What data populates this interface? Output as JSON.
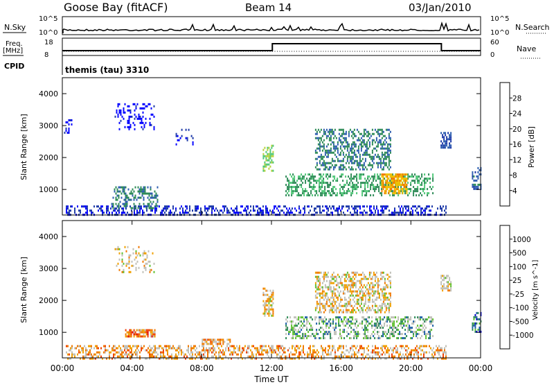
{
  "header": {
    "site": "Goose Bay (fitACF)",
    "beam": "Beam 14",
    "date": "03/Jan/2010"
  },
  "top_panel": {
    "nsky_label": "N.Sky",
    "nsearch_label": "N.Search",
    "tick_high": "10^5",
    "tick_low": "10^0",
    "freq_label": "Freq.",
    "freq_unit": "[MHz]",
    "freq_ticks": [
      "18",
      "8"
    ],
    "nave_label": "Nave",
    "nave_ticks": [
      "60",
      "0"
    ],
    "cpid_label": "CPID",
    "cpid_value": "themis (tau) 3310"
  },
  "x_axis": {
    "label": "Time UT",
    "ticks": [
      "00:00",
      "04:00",
      "08:00",
      "12:00",
      "16:00",
      "20:00",
      "00:00"
    ]
  },
  "colors": {
    "power": [
      "#0000ff",
      "#1e3aa8",
      "#2f5fb0",
      "#2e8b57",
      "#50c878",
      "#b8d23c",
      "#f0c000",
      "#f07c00",
      "#e03020",
      "#cc0000"
    ],
    "velocity": [
      "#e00000",
      "#f04000",
      "#f07800",
      "#f0a000",
      "#c0c0b8",
      "#c0c0b8",
      "#60c030",
      "#2e8b57",
      "#1e5fa8",
      "#0000cc"
    ]
  },
  "chart_data": [
    {
      "type": "heatmap",
      "name": "power",
      "ylabel": "Slant Range [km]",
      "ylim": [
        200,
        4500
      ],
      "yticks": [
        "4000",
        "3000",
        "2000",
        "1000"
      ],
      "xlim": [
        0,
        24
      ],
      "colorbar": {
        "label": "Power [dB]",
        "range": [
          0,
          32
        ],
        "ticks": [
          "28",
          "24",
          "20",
          "16",
          "12",
          "8",
          "4"
        ]
      },
      "regions": [
        {
          "t0": 0.2,
          "t1": 22.0,
          "r0": 200,
          "r1": 500,
          "level": 4,
          "density": 0.45
        },
        {
          "t0": 2.8,
          "t1": 5.5,
          "r0": 400,
          "r1": 1100,
          "level": 10,
          "density": 0.4
        },
        {
          "t0": 3.0,
          "t1": 5.3,
          "r0": 2900,
          "r1": 3700,
          "level": 2,
          "density": 0.25
        },
        {
          "t0": 0.1,
          "t1": 0.5,
          "r0": 2800,
          "r1": 3200,
          "level": 2,
          "density": 0.4
        },
        {
          "t0": 11.5,
          "t1": 12.1,
          "r0": 1600,
          "r1": 2400,
          "level": 15,
          "density": 0.55
        },
        {
          "t0": 12.8,
          "t1": 21.3,
          "r0": 800,
          "r1": 1500,
          "level": 12,
          "density": 0.45
        },
        {
          "t0": 14.5,
          "t1": 18.8,
          "r0": 1600,
          "r1": 2900,
          "level": 10,
          "density": 0.45
        },
        {
          "t0": 18.3,
          "t1": 19.8,
          "r0": 900,
          "r1": 1500,
          "level": 22,
          "density": 0.7
        },
        {
          "t0": 21.7,
          "t1": 22.3,
          "r0": 2300,
          "r1": 2800,
          "level": 6,
          "density": 0.6
        },
        {
          "t0": 23.5,
          "t1": 24.0,
          "r0": 1000,
          "r1": 1700,
          "level": 8,
          "density": 0.5
        },
        {
          "t0": 6.5,
          "t1": 7.5,
          "r0": 2400,
          "r1": 2900,
          "level": 3,
          "density": 0.2
        }
      ]
    },
    {
      "type": "heatmap",
      "name": "velocity",
      "ylabel": "Slant Range [km]",
      "ylim": [
        200,
        4500
      ],
      "yticks": [
        "4000",
        "3000",
        "2000",
        "1000"
      ],
      "xlim": [
        0,
        24
      ],
      "colorbar": {
        "label": "Velocity [m s^-1]",
        "ticks": [
          "1000",
          "500",
          "100",
          "25",
          "-25",
          "-100",
          "-500",
          "-1000"
        ]
      },
      "regions": [
        {
          "t0": 0.2,
          "t1": 22.0,
          "r0": 200,
          "r1": 600,
          "level": 3,
          "density": 0.45
        },
        {
          "t0": 3.6,
          "t1": 5.3,
          "r0": 850,
          "r1": 1100,
          "level": 2,
          "density": 0.75
        },
        {
          "t0": 8.0,
          "t1": 9.6,
          "r0": 650,
          "r1": 800,
          "level": 3,
          "density": 0.65
        },
        {
          "t0": 3.0,
          "t1": 5.3,
          "r0": 2900,
          "r1": 3700,
          "level": 4,
          "density": 0.2
        },
        {
          "t0": 11.5,
          "t1": 12.1,
          "r0": 1500,
          "r1": 2400,
          "level": 4,
          "density": 0.55
        },
        {
          "t0": 12.8,
          "t1": 21.3,
          "r0": 800,
          "r1": 1500,
          "level": 6,
          "density": 0.45
        },
        {
          "t0": 14.5,
          "t1": 18.8,
          "r0": 1600,
          "r1": 2900,
          "level": 4,
          "density": 0.5
        },
        {
          "t0": 21.7,
          "t1": 22.3,
          "r0": 2300,
          "r1": 2800,
          "level": 4,
          "density": 0.6
        },
        {
          "t0": 23.5,
          "t1": 24.0,
          "r0": 1000,
          "r1": 1700,
          "level": 8,
          "density": 0.5
        }
      ]
    }
  ]
}
